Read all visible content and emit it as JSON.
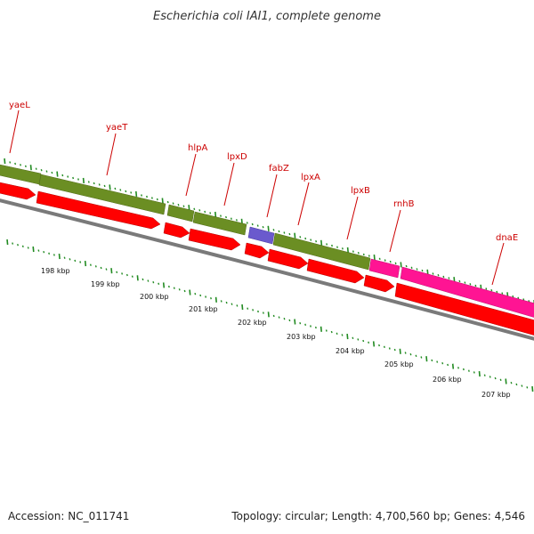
{
  "title": "Escherichia coli IAI1, complete genome",
  "footer": {
    "accession": "Accession: NC_011741",
    "topology": "Topology: circular; Length: 4,700,560 bp; Genes: 4,546"
  },
  "colors": {
    "label": "#cc0000",
    "cds": "#ff0000",
    "gene": "#6b8e23",
    "rna": "#ff1493",
    "special": "#6a5acd",
    "backbone": "#808080",
    "tick": "#228b22"
  },
  "gene_labels": [
    "yaeL",
    "yaeT",
    "hlpA",
    "lpxD",
    "fabZ",
    "lpxA",
    "lpxB",
    "rnhB",
    "dnaE"
  ],
  "kbp_labels": [
    "198 kbp",
    "199 kbp",
    "200 kbp",
    "201 kbp",
    "202 kbp",
    "203 kbp",
    "204 kbp",
    "205 kbp",
    "206 kbp",
    "207 kbp"
  ]
}
